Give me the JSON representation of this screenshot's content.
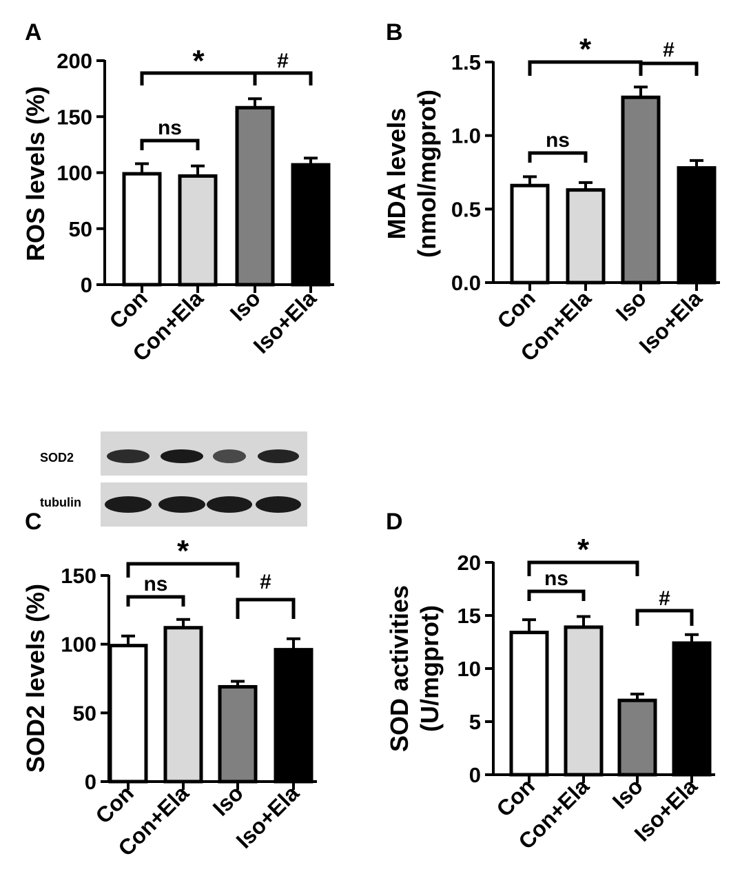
{
  "colors": {
    "Con": "#ffffff",
    "Con+Ela": "#d9d9d9",
    "Iso": "#808080",
    "Iso+Ela": "#000000",
    "blot_bg": "#d7d7d7",
    "band": "#1a1a1a"
  },
  "chart_data": [
    {
      "panel": "A",
      "type": "bar",
      "categories": [
        "Con",
        "Con+Ela",
        "Iso",
        "Iso+Ela"
      ],
      "values": [
        99,
        97,
        158,
        107
      ],
      "errors": [
        9,
        9,
        8,
        6
      ],
      "ylabel": [
        "ROS levels (%)"
      ],
      "ylim": [
        0,
        200
      ],
      "yticks": [
        0,
        50,
        100,
        150,
        200
      ],
      "ytick_labels": [
        "0",
        "50",
        "100",
        "150",
        "200"
      ],
      "brackets": [
        {
          "from": 0,
          "to": 1,
          "label": "ns"
        },
        {
          "from": 0,
          "to": 2,
          "label": "*"
        },
        {
          "from": 2,
          "to": 3,
          "label": "#"
        }
      ]
    },
    {
      "panel": "B",
      "type": "bar",
      "categories": [
        "Con",
        "Con+Ela",
        "Iso",
        "Iso+Ela"
      ],
      "values": [
        0.66,
        0.63,
        1.26,
        0.78
      ],
      "errors": [
        0.06,
        0.05,
        0.07,
        0.05
      ],
      "ylabel": [
        "MDA levels",
        "(nmol/mgprot)"
      ],
      "ylim": [
        0,
        1.5
      ],
      "yticks": [
        0,
        0.5,
        1.0,
        1.5
      ],
      "ytick_labels": [
        "0.0",
        "0.5",
        "1.0",
        "1.5"
      ],
      "brackets": [
        {
          "from": 0,
          "to": 1,
          "label": "ns"
        },
        {
          "from": 0,
          "to": 2,
          "label": "*"
        },
        {
          "from": 2,
          "to": 3,
          "label": "#"
        }
      ]
    },
    {
      "panel": "C",
      "type": "bar",
      "categories": [
        "Con",
        "Con+Ela",
        "Iso",
        "Iso+Ela"
      ],
      "values": [
        99,
        112,
        69,
        96
      ],
      "errors": [
        7,
        6,
        4,
        8
      ],
      "ylabel": [
        "SOD2 levels (%)"
      ],
      "ylim": [
        0,
        150
      ],
      "yticks": [
        0,
        50,
        100,
        150
      ],
      "ytick_labels": [
        "0",
        "50",
        "100",
        "150"
      ],
      "brackets": [
        {
          "from": 0,
          "to": 1,
          "label": "ns"
        },
        {
          "from": 0,
          "to": 2,
          "label": "*"
        },
        {
          "from": 2,
          "to": 3,
          "label": "#"
        }
      ]
    },
    {
      "panel": "D",
      "type": "bar",
      "categories": [
        "Con",
        "Con+Ela",
        "Iso",
        "Iso+Ela"
      ],
      "values": [
        13.4,
        13.9,
        7.0,
        12.4
      ],
      "errors": [
        1.2,
        1.0,
        0.6,
        0.8
      ],
      "ylabel": [
        "SOD activities",
        "(U/mgprot)"
      ],
      "ylim": [
        0,
        20
      ],
      "yticks": [
        0,
        5,
        10,
        15,
        20
      ],
      "ytick_labels": [
        "0",
        "5",
        "10",
        "15",
        "20"
      ],
      "brackets": [
        {
          "from": 0,
          "to": 1,
          "label": "ns"
        },
        {
          "from": 0,
          "to": 2,
          "label": "*"
        },
        {
          "from": 2,
          "to": 3,
          "label": "#"
        }
      ]
    }
  ],
  "blot": {
    "rows": [
      {
        "label": "SOD2"
      },
      {
        "label": "tubulin"
      }
    ],
    "lanes": 4
  }
}
